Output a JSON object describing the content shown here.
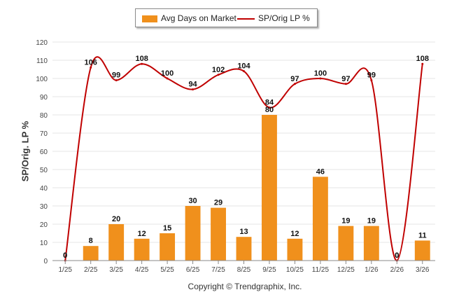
{
  "legend": {
    "bar_label": "Avg Days on Market",
    "line_label": "SP/Orig LP %"
  },
  "colors": {
    "bar": "#F0901C",
    "line": "#C00000",
    "grid": "#E6E6E6",
    "axis": "#888888"
  },
  "copyright": "Copyright © Trendgraphix, Inc.",
  "chart_data": {
    "type": "bar",
    "title": "",
    "xlabel": "",
    "ylabel": "SP/Orig. LP %",
    "ylim": [
      0,
      120
    ],
    "yticks": [
      0,
      10,
      20,
      30,
      40,
      50,
      60,
      70,
      80,
      90,
      100,
      110,
      120
    ],
    "grid": true,
    "legend_position": "top-center",
    "categories": [
      "1/25",
      "2/25",
      "3/25",
      "4/25",
      "5/25",
      "6/25",
      "7/25",
      "8/25",
      "9/25",
      "10/25",
      "11/25",
      "12/25",
      "1/26",
      "2/26",
      "3/26"
    ],
    "series": [
      {
        "name": "Avg Days on Market",
        "type": "bar",
        "values": [
          0,
          8,
          20,
          12,
          15,
          30,
          29,
          13,
          80,
          12,
          46,
          19,
          19,
          0,
          11
        ]
      },
      {
        "name": "SP/Orig LP %",
        "type": "line",
        "values": [
          0,
          106,
          99,
          108,
          100,
          94,
          102,
          104,
          84,
          97,
          100,
          97,
          99,
          0,
          108
        ]
      }
    ]
  }
}
